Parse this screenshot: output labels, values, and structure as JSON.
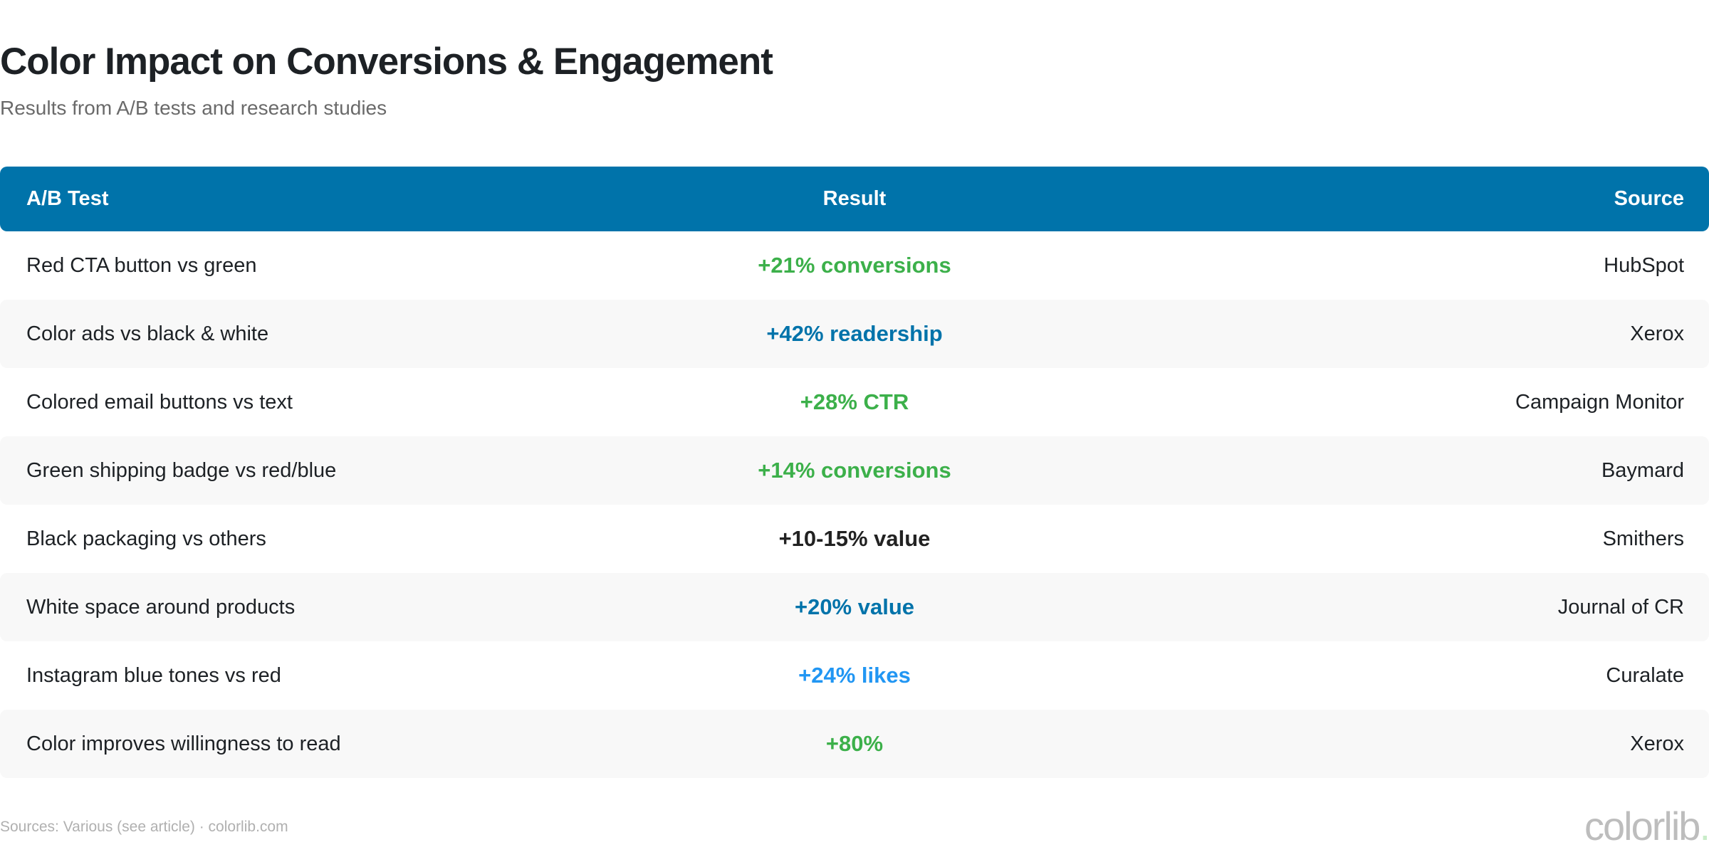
{
  "title": "Color Impact on Conversions & Engagement",
  "subtitle": "Results from A/B tests and research studies",
  "table": {
    "headers": [
      "A/B Test",
      "Result",
      "Source"
    ],
    "header_bg": "#0073aa",
    "rows": [
      {
        "test": "Red CTA button vs green",
        "result": "+21% conversions",
        "color": "#3cb04a",
        "source": "HubSpot"
      },
      {
        "test": "Color ads vs black & white",
        "result": "+42% readership",
        "color": "#0073aa",
        "source": "Xerox"
      },
      {
        "test": "Colored email buttons vs text",
        "result": "+28% CTR",
        "color": "#3cb04a",
        "source": "Campaign Monitor"
      },
      {
        "test": "Green shipping badge vs red/blue",
        "result": "+14% conversions",
        "color": "#3cb04a",
        "source": "Baymard"
      },
      {
        "test": "Black packaging vs others",
        "result": "+10-15% value",
        "color": "#222222",
        "source": "Smithers"
      },
      {
        "test": "White space around products",
        "result": "+20% value",
        "color": "#0073aa",
        "source": "Journal of CR"
      },
      {
        "test": "Instagram blue tones vs red",
        "result": "+24% likes",
        "color": "#2196f3",
        "source": "Curalate"
      },
      {
        "test": "Color improves willingness to read",
        "result": "+80%",
        "color": "#3cb04a",
        "source": "Xerox"
      }
    ]
  },
  "footer": "Sources: Various (see article) · colorlib.com",
  "logo": "colorlib"
}
